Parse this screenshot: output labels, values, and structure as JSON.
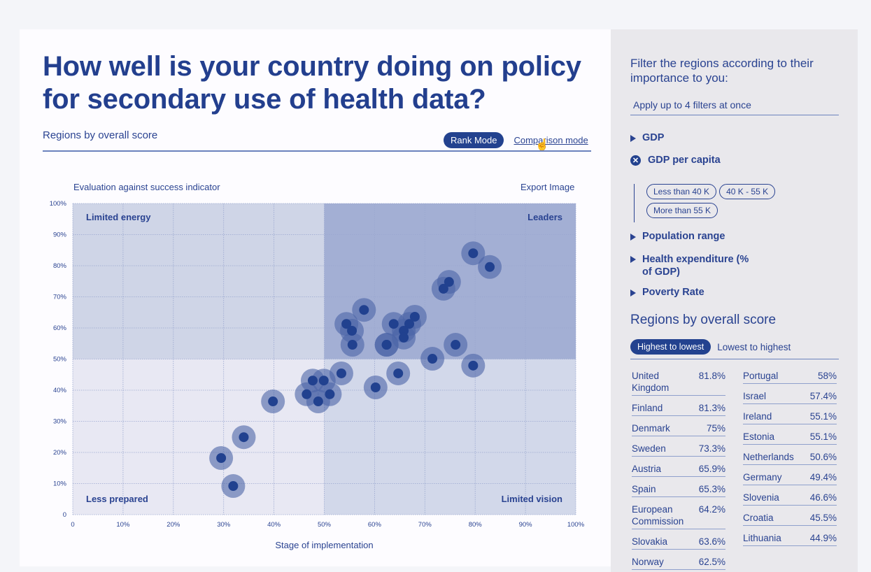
{
  "header": {
    "title": "How well is your country doing on policy for secondary use of health data?",
    "subhead": "Regions by overall score",
    "rank_mode": "Rank Mode",
    "comparison_mode": "Comparison mode"
  },
  "chart_toolbar": {
    "left_label": "Evaluation against success indicator",
    "export": "Export Image"
  },
  "chart_data": {
    "type": "scatter",
    "title": "Evaluation against success indicator",
    "xlabel": "Stage of implementation",
    "ylabel": "",
    "xlim": [
      0,
      100
    ],
    "ylim": [
      0,
      100
    ],
    "x_ticks": [
      "0",
      "10%",
      "20%",
      "30%",
      "40%",
      "50%",
      "60%",
      "70%",
      "80%",
      "90%",
      "100%"
    ],
    "y_ticks": [
      "0",
      "10%",
      "20%",
      "30%",
      "40%",
      "50%",
      "60%",
      "70%",
      "80%",
      "90%",
      "100%"
    ],
    "grid": true,
    "quadrant_split": {
      "x": 50,
      "y": 50
    },
    "quadrants": {
      "top_left": "Limited energy",
      "top_right": "Leaders",
      "bottom_left": "Less prepared",
      "bottom_right": "Limited vision"
    },
    "points": [
      {
        "x": 79.6,
        "y": 84.0
      },
      {
        "x": 82.9,
        "y": 79.6
      },
      {
        "x": 74.8,
        "y": 74.8
      },
      {
        "x": 73.7,
        "y": 72.6
      },
      {
        "x": 57.9,
        "y": 65.8
      },
      {
        "x": 68.0,
        "y": 63.6
      },
      {
        "x": 54.4,
        "y": 61.3
      },
      {
        "x": 63.8,
        "y": 61.3
      },
      {
        "x": 66.9,
        "y": 61.3
      },
      {
        "x": 55.5,
        "y": 59.1
      },
      {
        "x": 65.8,
        "y": 59.1
      },
      {
        "x": 65.8,
        "y": 56.9
      },
      {
        "x": 55.6,
        "y": 54.6
      },
      {
        "x": 62.4,
        "y": 54.6
      },
      {
        "x": 62.4,
        "y": 54.6
      },
      {
        "x": 76.1,
        "y": 54.6
      },
      {
        "x": 71.5,
        "y": 50.1
      },
      {
        "x": 79.6,
        "y": 47.9
      },
      {
        "x": 53.4,
        "y": 45.4
      },
      {
        "x": 64.7,
        "y": 45.4
      },
      {
        "x": 47.7,
        "y": 43.1
      },
      {
        "x": 49.9,
        "y": 43.1
      },
      {
        "x": 60.2,
        "y": 40.9
      },
      {
        "x": 46.5,
        "y": 38.7
      },
      {
        "x": 51.1,
        "y": 38.7
      },
      {
        "x": 48.8,
        "y": 36.4
      },
      {
        "x": 39.8,
        "y": 36.4
      },
      {
        "x": 34.0,
        "y": 24.9
      },
      {
        "x": 29.5,
        "y": 18.2
      },
      {
        "x": 31.9,
        "y": 9.2
      }
    ],
    "colors": {
      "point_core": "#21418f",
      "point_halo": "#4b64a7",
      "leaders_bg": "#a3afd4",
      "upper_left_bg": "#cfd5e7",
      "lower_right_bg": "#d2d8ea",
      "lower_left_bg": "#e8e8f3"
    }
  },
  "sidebar": {
    "title": "Filter the regions according to their importance to you:",
    "note": "Apply up to 4 filters at once",
    "filters": [
      {
        "label": "GDP",
        "state": "collapsed"
      },
      {
        "label": "GDP per capita",
        "state": "expanded"
      },
      {
        "label": "Population range",
        "state": "collapsed"
      },
      {
        "label": "Health expenditure (% of GDP)",
        "state": "collapsed"
      },
      {
        "label": "Poverty Rate",
        "state": "collapsed"
      }
    ],
    "gdp_per_capita_options": [
      "Less than 40 K",
      "40 K - 55 K",
      "More than 55 K"
    ],
    "ranking": {
      "title": "Regions by overall score",
      "sort_active": "Highest to lowest",
      "sort_inactive": "Lowest to highest",
      "left": [
        {
          "name": "United Kingdom",
          "score": "81.8%"
        },
        {
          "name": "Finland",
          "score": "81.3%"
        },
        {
          "name": "Denmark",
          "score": "75%"
        },
        {
          "name": "Sweden",
          "score": "73.3%"
        },
        {
          "name": "Austria",
          "score": "65.9%"
        },
        {
          "name": "Spain",
          "score": "65.3%"
        },
        {
          "name": "European Commission",
          "score": "64.2%"
        },
        {
          "name": "Slovakia",
          "score": "63.6%"
        },
        {
          "name": "Norway",
          "score": "62.5%"
        }
      ],
      "right": [
        {
          "name": "Portugal",
          "score": "58%"
        },
        {
          "name": "Israel",
          "score": "57.4%"
        },
        {
          "name": "Ireland",
          "score": "55.1%"
        },
        {
          "name": "Estonia",
          "score": "55.1%"
        },
        {
          "name": "Netherlands",
          "score": "50.6%"
        },
        {
          "name": "Germany",
          "score": "49.4%"
        },
        {
          "name": "Slovenia",
          "score": "46.6%"
        },
        {
          "name": "Croatia",
          "score": "45.5%"
        },
        {
          "name": "Lithuania",
          "score": "44.9%"
        }
      ]
    }
  }
}
